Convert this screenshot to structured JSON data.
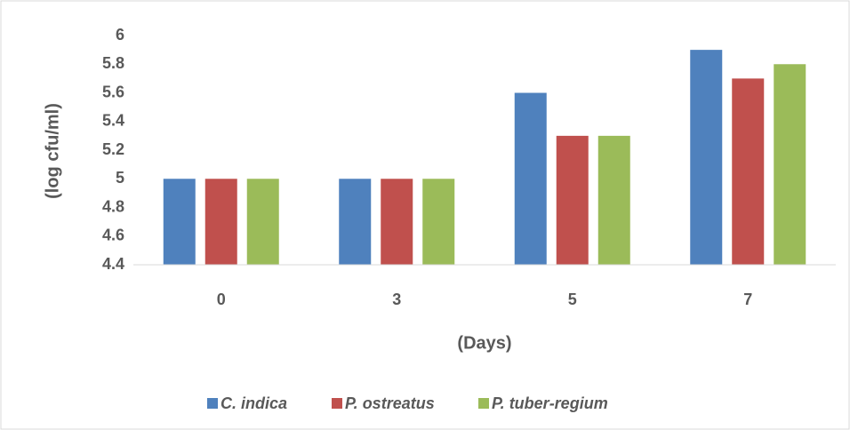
{
  "chart_data": {
    "type": "bar",
    "categories": [
      "0",
      "3",
      "5",
      "7"
    ],
    "series": [
      {
        "name": "C. indica",
        "color": "#4f81bd",
        "values": [
          5,
          5,
          5.6,
          5.9
        ]
      },
      {
        "name": "P. ostreatus",
        "color": "#c0504d",
        "values": [
          5,
          5,
          5.3,
          5.7
        ]
      },
      {
        "name": "P. tuber-regium",
        "color": "#9bbb59",
        "values": [
          5,
          5,
          5.3,
          5.8
        ]
      }
    ],
    "x_label": "(Days)",
    "y_label": "(log cfu/ml)",
    "ylim": [
      4.4,
      6
    ],
    "yticks": [
      4.4,
      4.6,
      4.8,
      5,
      5.2,
      5.4,
      5.6,
      5.8,
      6
    ],
    "grid": false,
    "legend": "bottom"
  }
}
